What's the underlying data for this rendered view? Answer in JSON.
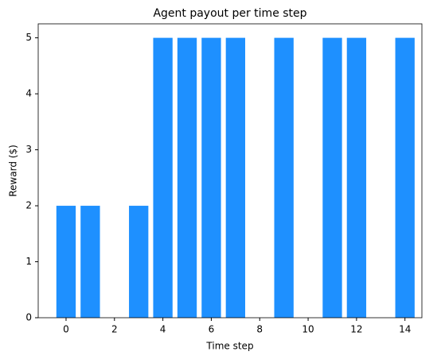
{
  "chart_data": {
    "type": "bar",
    "title": "Agent payout per time step",
    "x_label": "Time step",
    "y_label": "Reward ($)",
    "x": [
      0,
      1,
      2,
      3,
      4,
      5,
      6,
      7,
      8,
      9,
      10,
      11,
      12,
      13,
      14
    ],
    "values": [
      2,
      2,
      0,
      2,
      5,
      5,
      5,
      5,
      0,
      5,
      0,
      5,
      5,
      0,
      5
    ],
    "color": "#1e90ff",
    "xlim": [
      -1.15,
      14.7
    ],
    "xticks": [
      0,
      2,
      4,
      6,
      8,
      10,
      12,
      14
    ],
    "ylim": [
      0,
      5.25
    ],
    "yticks": [
      0,
      1,
      2,
      3,
      4,
      5
    ],
    "grid": false
  }
}
